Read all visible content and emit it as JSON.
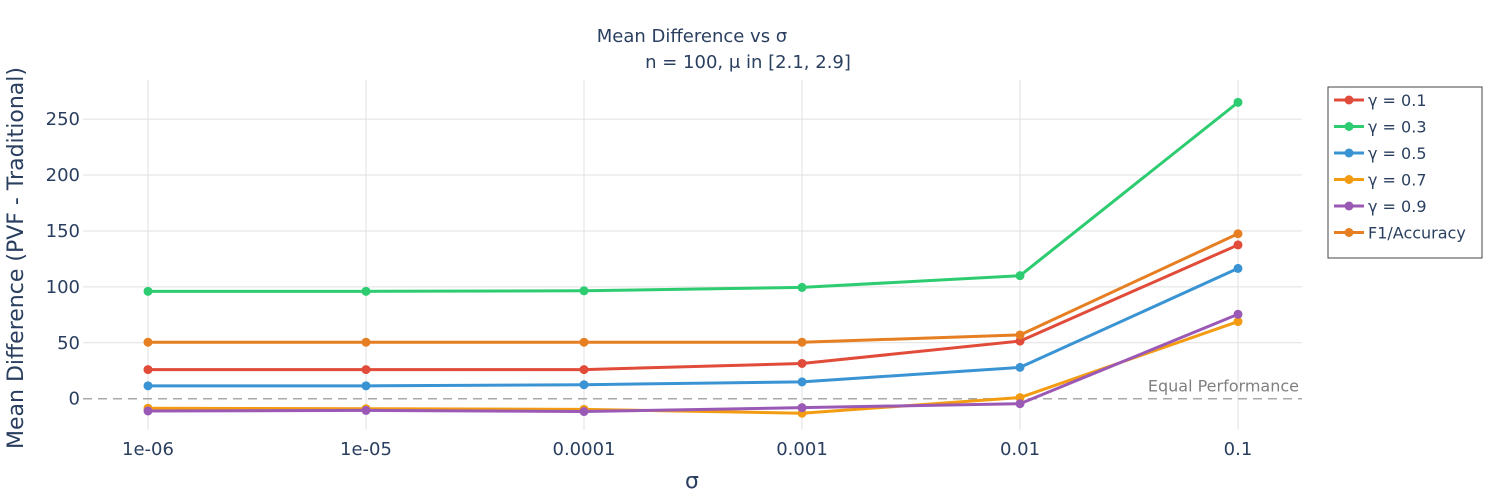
{
  "chart_data": {
    "type": "line",
    "title": "Mean Difference vs σ",
    "subtitle": "n = 100, μ in [2.1, 2.9]",
    "xlabel": "σ",
    "ylabel": "Mean Difference (PVF - Traditional)",
    "x": [
      "1e-06",
      "1e-05",
      "0.0001",
      "0.001",
      "0.01",
      "0.1"
    ],
    "xscale": "log",
    "ylim": [
      -28,
      285
    ],
    "yticks": [
      0,
      50,
      100,
      150,
      200,
      250
    ],
    "grid": true,
    "legend_position": "top-right",
    "reference_line": {
      "y": 0,
      "style": "dashed",
      "color": "#a9a9a9",
      "label": "Equal Performance"
    },
    "series": [
      {
        "name": "γ = 0.1",
        "color": "#e04b3a",
        "values": [
          26,
          26,
          26,
          31.5,
          51.5,
          137.5
        ]
      },
      {
        "name": "γ = 0.3",
        "color": "#2ecc71",
        "values": [
          96,
          96,
          96.5,
          99.5,
          110,
          265
        ]
      },
      {
        "name": "γ = 0.5",
        "color": "#3a94d4",
        "values": [
          11.5,
          11.5,
          12.5,
          15,
          28,
          116.5
        ]
      },
      {
        "name": "γ = 0.7",
        "color": "#f39c12",
        "values": [
          -8.5,
          -9,
          -9.5,
          -13,
          1,
          69
        ]
      },
      {
        "name": "γ = 0.9",
        "color": "#9b59b6",
        "values": [
          -11,
          -10.5,
          -11.5,
          -8,
          -4.5,
          75.5
        ]
      },
      {
        "name": "F1/Accuracy",
        "color": "#e67e22",
        "values": [
          50.5,
          50.5,
          50.5,
          50.5,
          57,
          147.5
        ]
      }
    ]
  }
}
